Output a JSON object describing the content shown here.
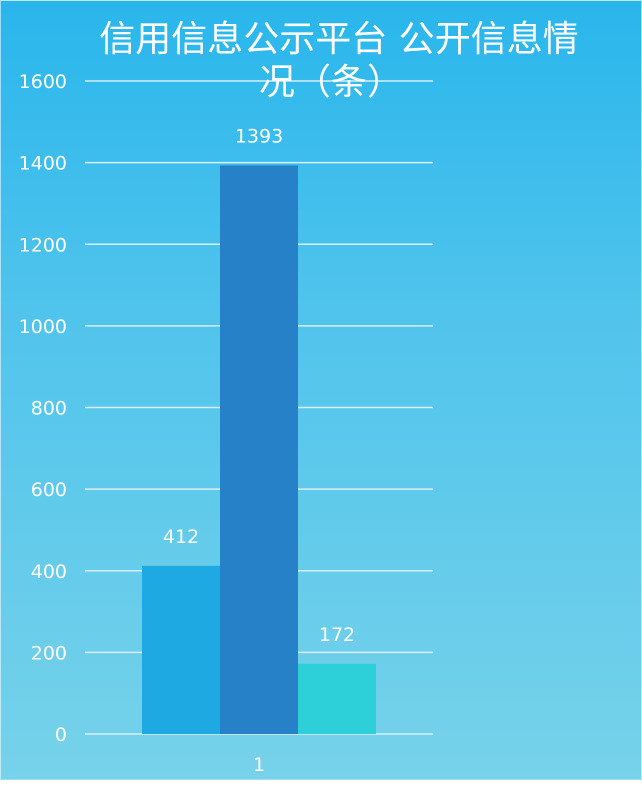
{
  "chart_data": {
    "type": "bar",
    "title": "信用信息公示平台 公开信息情况（条）",
    "title_lines": [
      "信用信息公示平台 公开信息情",
      "况（条）"
    ],
    "categories": [
      "1"
    ],
    "series": [
      {
        "values": [
          412
        ],
        "color": "#1fa9e2"
      },
      {
        "values": [
          1393
        ],
        "color": "#2781c8"
      },
      {
        "values": [
          172
        ],
        "color": "#2dcfd8"
      }
    ],
    "data_labels": [
      "412",
      "1393",
      "172"
    ],
    "y_ticks": [
      "0",
      "200",
      "400",
      "600",
      "800",
      "1000",
      "1200",
      "1400",
      "1600"
    ],
    "ylim": [
      0,
      1600
    ],
    "grid": true,
    "legend": "none",
    "xlabel": "",
    "ylabel": ""
  },
  "colors": {
    "background_top": "#29b6ec",
    "background_bottom": "#77d2ea",
    "gridline": "#d8eef8",
    "text": "#ffffff"
  }
}
